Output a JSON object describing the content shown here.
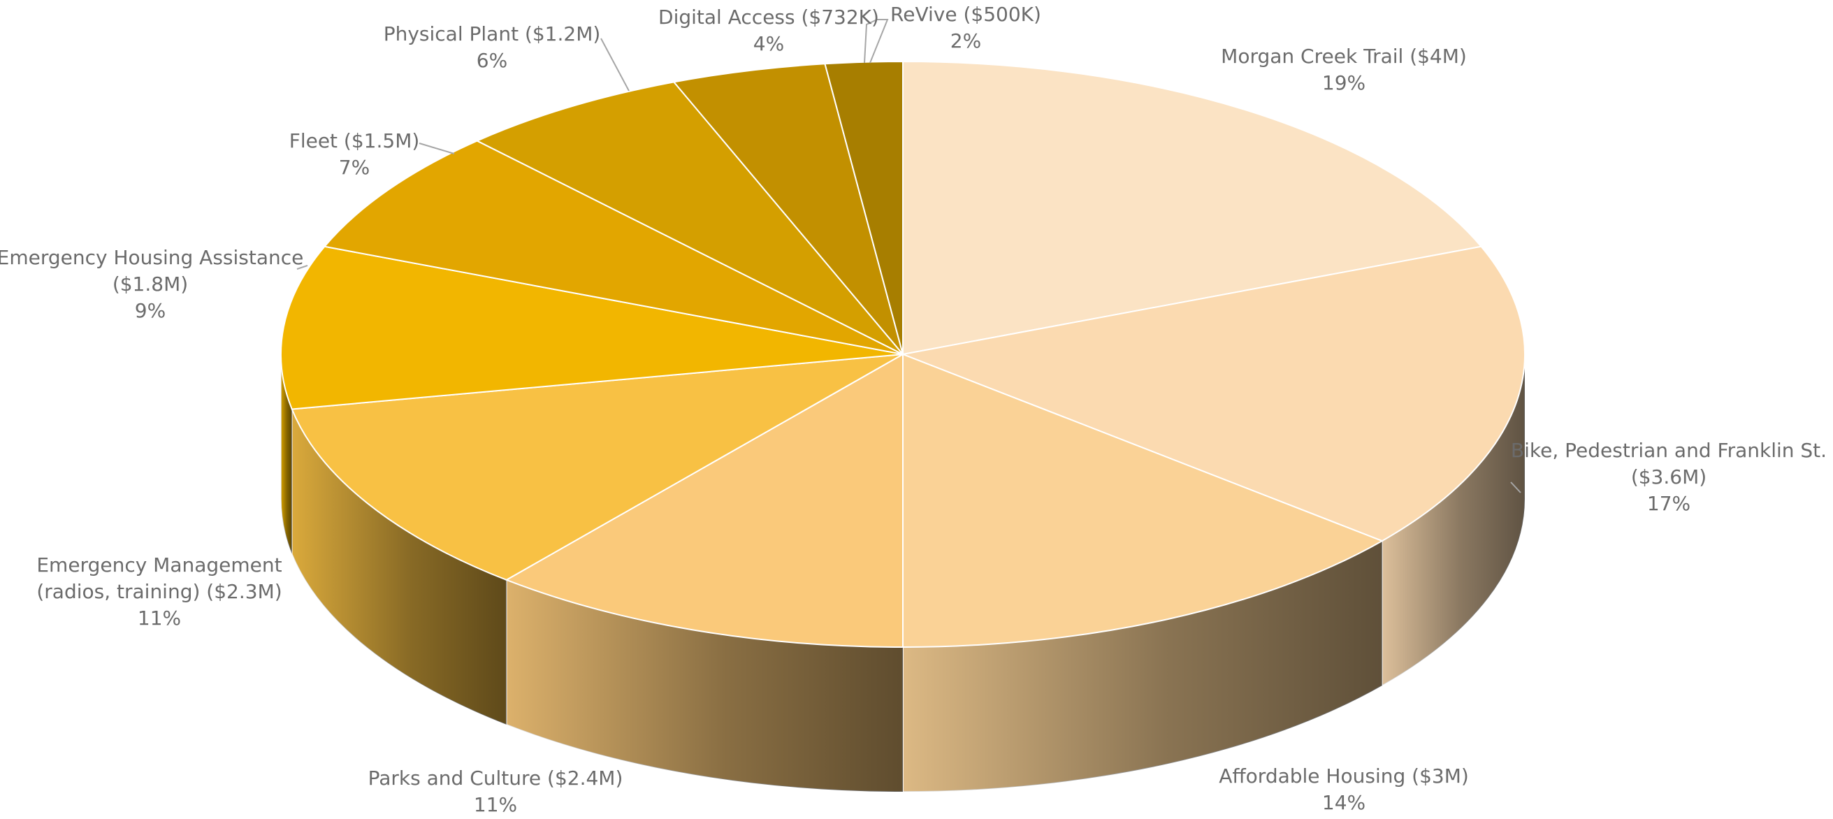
{
  "chart_data": {
    "type": "pie3d",
    "categories": [
      "Morgan Creek Trail ($4M)",
      "Bike, Pedestrian and Franklin St. ($3.6M)",
      "Affordable Housing ($3M)",
      "Parks and Culture ($2.4M)",
      "Emergency Management (radios, training) ($2.3M)",
      "Emergency Housing Assistance ($1.8M)",
      "Fleet ($1.5M)",
      "Physical Plant ($1.2M)",
      "Digital Access ($732K)",
      "ReVive ($500K)"
    ],
    "values": [
      19,
      17,
      14,
      11,
      11,
      9,
      7,
      6,
      4,
      2
    ],
    "value_labels": [
      "19%",
      "17%",
      "14%",
      "11%",
      "11%",
      "9%",
      "7%",
      "6%",
      "4%",
      "2%"
    ],
    "colors": [
      "#fbe3c4",
      "#fbdab0",
      "#fad296",
      "#fac97a",
      "#f8c144",
      "#f2b600",
      "#e2a600",
      "#d49f00",
      "#c29000",
      "#a77e00"
    ]
  }
}
